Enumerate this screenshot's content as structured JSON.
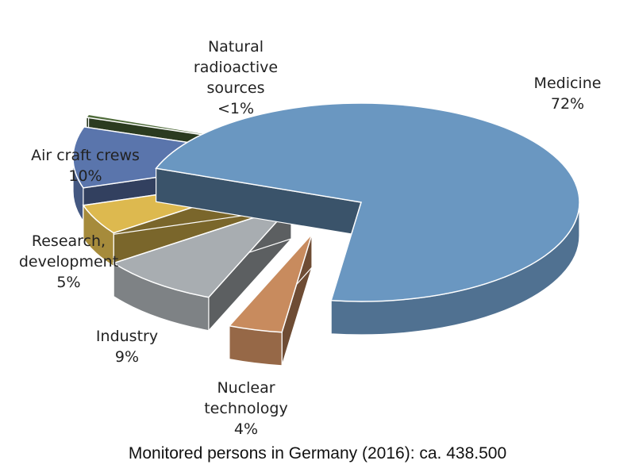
{
  "chart_data": {
    "type": "pie",
    "style": "3d-exploded",
    "slices": [
      {
        "label": "Medicine",
        "value_label": "72%",
        "value": 72,
        "color": "#6A97C1"
      },
      {
        "label": "Nuclear technology",
        "value_label": "4%",
        "value": 4,
        "color": "#C88B5E"
      },
      {
        "label": "Industry",
        "value_label": "9%",
        "value": 9,
        "color": "#A8ADB1"
      },
      {
        "label": "Research, development",
        "value_label": "5%",
        "value": 5,
        "color": "#DDB94F"
      },
      {
        "label": "Air craft crews",
        "value_label": "10%",
        "value": 10,
        "color": "#5A75AC"
      },
      {
        "label": "Natural radioactive sources",
        "value_label": "<1%",
        "value": 0.5,
        "color": "#4F6B3A"
      }
    ],
    "labels": [
      {
        "text": "Natural\nradioactive\nsources\n<1%"
      },
      {
        "text": "Medicine\n72%"
      },
      {
        "text": "Air craft crews\n10%"
      },
      {
        "text": "Research,\ndevelopment\n5%"
      },
      {
        "text": "Industry\n9%"
      },
      {
        "text": "Nuclear\ntechnology\n4%"
      }
    ],
    "caption": "Monitored persons in Germany (2016): ca. 438.500"
  }
}
